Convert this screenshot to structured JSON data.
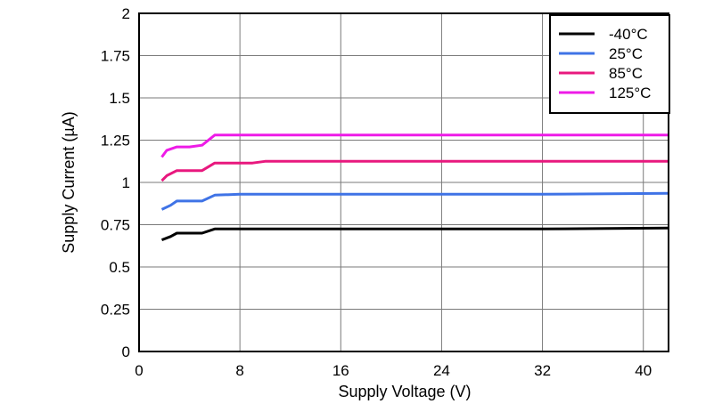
{
  "chart_data": {
    "type": "line",
    "title": "",
    "xlabel": "Supply Voltage (V)",
    "ylabel": "Supply Current (µA)",
    "xlim": [
      0,
      42
    ],
    "ylim": [
      0,
      2
    ],
    "xticks": [
      0,
      8,
      16,
      24,
      32,
      40
    ],
    "yticks": [
      0,
      0.25,
      0.5,
      0.75,
      1,
      1.25,
      1.5,
      1.75,
      2
    ],
    "ytick_labels": [
      "0",
      "0.25",
      "0.5",
      "0.75",
      "1",
      "1.25",
      "1.5",
      "1.75",
      "2"
    ],
    "grid": true,
    "legend_position": "top-right",
    "series": [
      {
        "name": "-40°C",
        "color": "#000000",
        "x": [
          1.8,
          2.5,
          3,
          4,
          5,
          6,
          8,
          16,
          24,
          32,
          42
        ],
        "y": [
          0.66,
          0.68,
          0.7,
          0.7,
          0.7,
          0.725,
          0.725,
          0.725,
          0.725,
          0.725,
          0.73
        ]
      },
      {
        "name": "25°C",
        "color": "#3f73e6",
        "x": [
          1.8,
          2.5,
          3,
          4,
          5,
          6,
          8,
          16,
          24,
          32,
          42
        ],
        "y": [
          0.84,
          0.865,
          0.89,
          0.89,
          0.89,
          0.925,
          0.93,
          0.93,
          0.93,
          0.93,
          0.935
        ]
      },
      {
        "name": "85°C",
        "color": "#e8187e",
        "x": [
          1.8,
          2.2,
          3,
          4,
          5,
          6,
          9,
          10,
          16,
          24,
          32,
          42
        ],
        "y": [
          1.01,
          1.04,
          1.07,
          1.07,
          1.07,
          1.115,
          1.115,
          1.125,
          1.125,
          1.125,
          1.125,
          1.125
        ]
      },
      {
        "name": "125°C",
        "color": "#ee1be7",
        "x": [
          1.8,
          2.2,
          3,
          4,
          5,
          6,
          8,
          16,
          24,
          32,
          42
        ],
        "y": [
          1.15,
          1.19,
          1.21,
          1.21,
          1.22,
          1.28,
          1.28,
          1.28,
          1.28,
          1.28,
          1.28
        ]
      }
    ]
  }
}
